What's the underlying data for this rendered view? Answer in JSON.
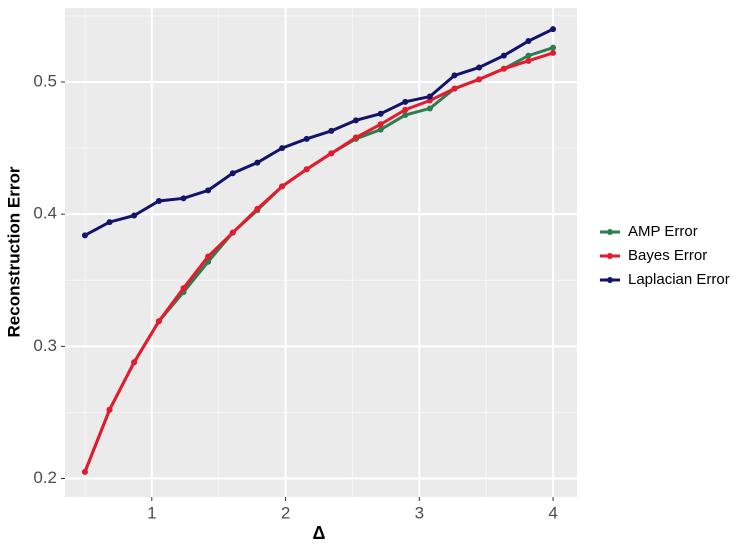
{
  "chart_data": {
    "type": "line",
    "x_label": "Δ",
    "y_label": "Reconstruction Error",
    "x": [
      0.5,
      0.684,
      0.868,
      1.053,
      1.237,
      1.421,
      1.605,
      1.789,
      1.974,
      2.158,
      2.342,
      2.526,
      2.711,
      2.895,
      3.079,
      3.263,
      3.447,
      3.632,
      3.816,
      4.0
    ],
    "series": [
      {
        "name": "AMP Error",
        "color": "#2e7d4f",
        "values": [
          0.205,
          0.252,
          0.288,
          0.319,
          0.341,
          0.364,
          0.386,
          0.403,
          0.421,
          0.434,
          0.446,
          0.457,
          0.464,
          0.475,
          0.48,
          0.495,
          0.502,
          0.51,
          0.52,
          0.526
        ]
      },
      {
        "name": "Bayes Error",
        "color": "#e8192c",
        "values": [
          0.205,
          0.252,
          0.288,
          0.319,
          0.344,
          0.368,
          0.386,
          0.404,
          0.421,
          0.434,
          0.446,
          0.458,
          0.468,
          0.479,
          0.486,
          0.495,
          0.502,
          0.51,
          0.516,
          0.522
        ]
      },
      {
        "name": "Laplacian Error",
        "color": "#13136b",
        "values": [
          0.384,
          0.394,
          0.399,
          0.41,
          0.412,
          0.418,
          0.431,
          0.439,
          0.45,
          0.457,
          0.463,
          0.471,
          0.476,
          0.485,
          0.489,
          0.505,
          0.511,
          0.52,
          0.531,
          0.54
        ]
      }
    ],
    "xlim": [
      0.351,
      4.179
    ],
    "xticks": [
      1,
      2,
      3,
      4
    ],
    "ylim": [
      0.186,
      0.556
    ],
    "yticks": [
      0.2,
      0.3,
      0.4,
      0.5
    ],
    "grid": true,
    "legend": "right"
  }
}
